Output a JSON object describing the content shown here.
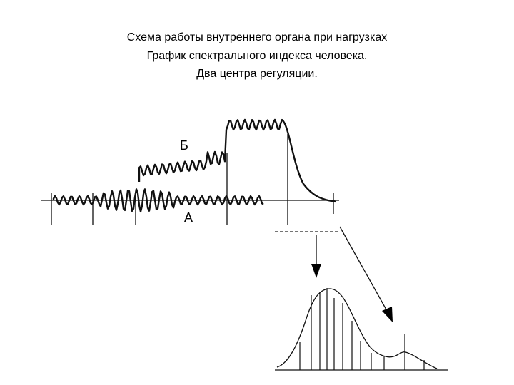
{
  "title": {
    "lines": [
      "Схема работы внутреннего органа при нагрузках",
      "График спектрального индекса человека.",
      "Два центра регуляции."
    ]
  },
  "labels": {
    "b": "Б",
    "a": "А"
  }
}
